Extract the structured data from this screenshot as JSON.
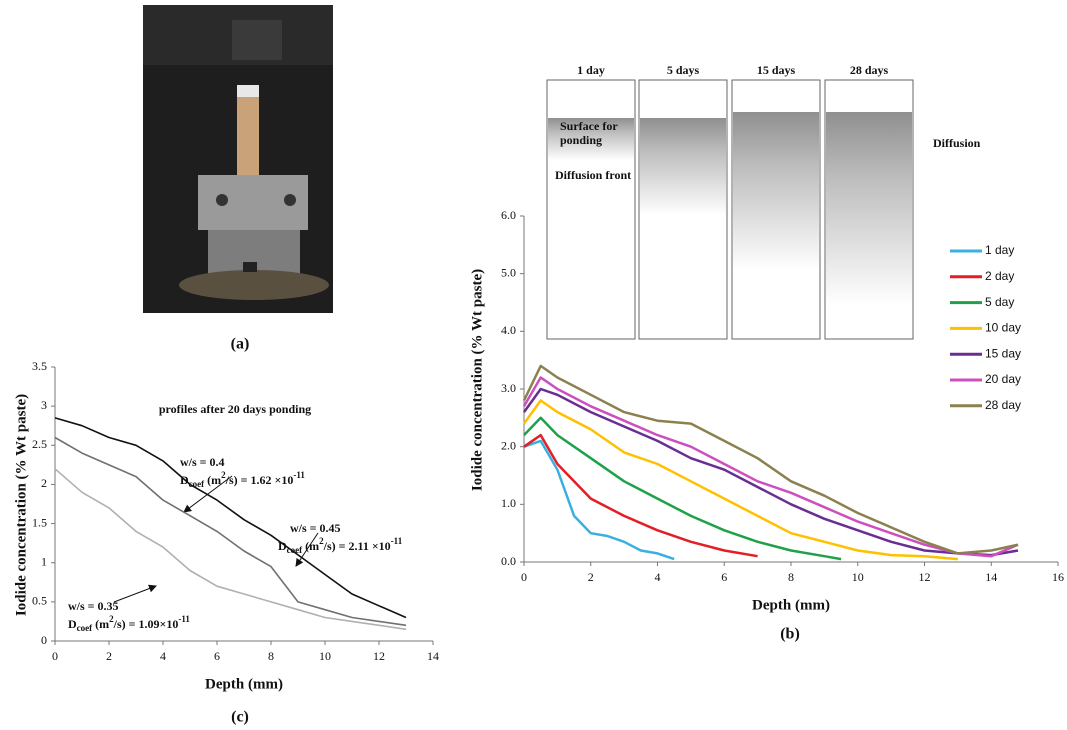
{
  "photo": {
    "caption": "(a)"
  },
  "chart_data": [
    {
      "type": "line",
      "caption": "(b)",
      "x_label": "Depth (mm)",
      "y_label": "Iodide concentration (% Wt paste)",
      "xlim": [
        0,
        16
      ],
      "xticks": [
        0,
        2,
        4,
        6,
        8,
        10,
        12,
        14,
        16
      ],
      "ylim": [
        0,
        6
      ],
      "yticks": [
        {
          "value": 0,
          "label": "0.0"
        },
        {
          "value": 1,
          "label": "1.0"
        },
        {
          "value": 2,
          "label": "2.0"
        },
        {
          "value": 3,
          "label": "3.0"
        },
        {
          "value": 4,
          "label": "4.0"
        },
        {
          "value": 5,
          "label": "5.0"
        },
        {
          "value": 6,
          "label": "6.0"
        }
      ],
      "inset_panels": [
        "1 day",
        "5 days",
        "15 days",
        "28 days"
      ],
      "annotations": [
        "Surface for",
        "ponding",
        "Diffusion front",
        "Diffusion"
      ],
      "series": [
        {
          "name": "1 day",
          "color": "#3ab0e0",
          "x": [
            0,
            0.5,
            1,
            1.5,
            2,
            2.5,
            3,
            3.5,
            4,
            4.5
          ],
          "values": [
            2.0,
            2.1,
            1.6,
            0.8,
            0.5,
            0.45,
            0.35,
            0.2,
            0.15,
            0.05
          ]
        },
        {
          "name": "2 day",
          "color": "#e31e24",
          "x": [
            0,
            0.5,
            1,
            2,
            3,
            4,
            5,
            6,
            7
          ],
          "values": [
            2.0,
            2.2,
            1.7,
            1.1,
            0.8,
            0.55,
            0.35,
            0.2,
            0.1
          ]
        },
        {
          "name": "5 day",
          "color": "#1fa14a",
          "x": [
            0,
            0.5,
            1,
            2,
            3,
            4,
            5,
            6,
            7,
            8,
            9,
            9.5
          ],
          "values": [
            2.2,
            2.5,
            2.2,
            1.8,
            1.4,
            1.1,
            0.8,
            0.55,
            0.35,
            0.2,
            0.1,
            0.05
          ]
        },
        {
          "name": "10 day",
          "color": "#ffc000",
          "x": [
            0,
            0.5,
            1,
            2,
            3,
            4,
            5,
            6,
            7,
            8,
            9,
            10,
            11,
            12,
            13
          ],
          "values": [
            2.4,
            2.8,
            2.6,
            2.3,
            1.9,
            1.7,
            1.4,
            1.1,
            0.8,
            0.5,
            0.35,
            0.2,
            0.12,
            0.1,
            0.05
          ]
        },
        {
          "name": "15 day",
          "color": "#6a2e91",
          "x": [
            0,
            0.5,
            1,
            2,
            3,
            4,
            5,
            6,
            7,
            8,
            9,
            10,
            11,
            12,
            13,
            14,
            14.8
          ],
          "values": [
            2.6,
            3.0,
            2.9,
            2.6,
            2.35,
            2.1,
            1.8,
            1.6,
            1.3,
            1.0,
            0.75,
            0.55,
            0.35,
            0.2,
            0.15,
            0.12,
            0.2
          ]
        },
        {
          "name": "20 day",
          "color": "#cc4fbf",
          "x": [
            0,
            0.5,
            1,
            2,
            3,
            4,
            5,
            6,
            7,
            8,
            9,
            10,
            11,
            12,
            13,
            14,
            14.8
          ],
          "values": [
            2.7,
            3.2,
            3.0,
            2.7,
            2.45,
            2.2,
            2.0,
            1.7,
            1.4,
            1.2,
            0.95,
            0.7,
            0.5,
            0.3,
            0.15,
            0.1,
            0.3
          ]
        },
        {
          "name": "28 day",
          "color": "#8b8050",
          "x": [
            0,
            0.5,
            1,
            2,
            3,
            4,
            5,
            6,
            7,
            8,
            9,
            10,
            11,
            12,
            13,
            14,
            14.8
          ],
          "values": [
            2.8,
            3.4,
            3.2,
            2.9,
            2.6,
            2.45,
            2.4,
            2.1,
            1.8,
            1.4,
            1.15,
            0.85,
            0.6,
            0.35,
            0.15,
            0.2,
            0.3
          ]
        }
      ]
    },
    {
      "type": "line",
      "caption": "(c)",
      "title": "profiles after 20 days ponding",
      "x_label": "Depth (mm)",
      "y_label": "Iodide concentration (% Wt paste)",
      "xlim": [
        0,
        14
      ],
      "xticks": [
        0,
        2,
        4,
        6,
        8,
        10,
        12,
        14
      ],
      "ylim": [
        0,
        3.5
      ],
      "yticks": [
        0,
        0.5,
        1,
        1.5,
        2,
        2.5,
        3,
        3.5
      ],
      "x": [
        0,
        1,
        2,
        3,
        4,
        5,
        6,
        7,
        8,
        9,
        10,
        11,
        12,
        13
      ],
      "series": [
        {
          "name": "w/s = 0.4",
          "color": "#111111",
          "values": [
            2.85,
            2.75,
            2.6,
            2.5,
            2.3,
            2.0,
            1.8,
            1.55,
            1.35,
            1.1,
            0.85,
            0.6,
            0.45,
            0.3
          ],
          "d_coef": [
            "D",
            "coef",
            " (m",
            "2",
            "/s) = 1.62 ×10",
            "-11"
          ]
        },
        {
          "name": "w/s = 0.45",
          "color": "#707070",
          "values": [
            2.6,
            2.4,
            2.25,
            2.1,
            1.8,
            1.6,
            1.4,
            1.15,
            0.95,
            0.5,
            0.4,
            0.3,
            0.25,
            0.2
          ],
          "d_coef": [
            "D",
            "coef",
            " (m",
            "2",
            "/s) = 2.11 ×10",
            "-11"
          ]
        },
        {
          "name": "w/s = 0.35",
          "color": "#b0b0b0",
          "values": [
            2.2,
            1.9,
            1.7,
            1.4,
            1.2,
            0.9,
            0.7,
            0.6,
            0.5,
            0.4,
            0.3,
            0.25,
            0.2,
            0.15
          ],
          "d_coef": [
            "D",
            "coef",
            " (m",
            "2",
            "/s) = 1.09×10",
            "-11"
          ]
        }
      ]
    }
  ]
}
